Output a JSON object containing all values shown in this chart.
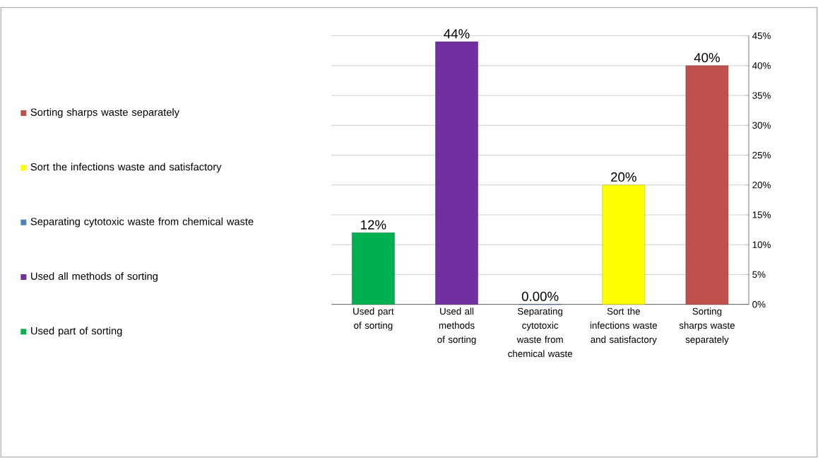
{
  "chart_data": {
    "type": "bar",
    "categories": [
      "Used part of sorting",
      "Used all methods of sorting",
      "Separating cytotoxic waste from chemical waste",
      "Sort the infections waste and satisfactory",
      "Sorting sharps waste separately"
    ],
    "stacked": true,
    "series": [
      {
        "name": "Used part of sorting",
        "color": "#00b050",
        "values": [
          12,
          null,
          null,
          null,
          null
        ],
        "value_labels": [
          "12%",
          null,
          null,
          null,
          null
        ]
      },
      {
        "name": "Used all methods of sorting",
        "color": "#7030a0",
        "values": [
          null,
          44,
          null,
          null,
          null
        ],
        "value_labels": [
          null,
          "44%",
          null,
          null,
          null
        ]
      },
      {
        "name": "Separating cytotoxic waste from chemical waste",
        "color": "#4f81bd",
        "values": [
          null,
          null,
          0,
          null,
          null
        ],
        "value_labels": [
          null,
          null,
          "0.00%",
          null,
          null
        ]
      },
      {
        "name": "Sort the infections waste and satisfactory",
        "color": "#ffff00",
        "values": [
          null,
          null,
          null,
          20,
          null
        ],
        "value_labels": [
          null,
          null,
          null,
          "20%",
          null
        ]
      },
      {
        "name": "Sorting sharps waste separately",
        "color": "#c0504d",
        "values": [
          null,
          null,
          null,
          null,
          40
        ],
        "value_labels": [
          null,
          null,
          null,
          null,
          "40%"
        ]
      }
    ],
    "ylim": [
      0,
      45
    ],
    "yticks": [
      {
        "value": 0,
        "label": "0%"
      },
      {
        "value": 5,
        "label": "5%"
      },
      {
        "value": 10,
        "label": "10%"
      },
      {
        "value": 15,
        "label": "15%"
      },
      {
        "value": 20,
        "label": "20%"
      },
      {
        "value": 25,
        "label": "25%"
      },
      {
        "value": 30,
        "label": "30%"
      },
      {
        "value": 35,
        "label": "35%"
      },
      {
        "value": 40,
        "label": "40%"
      },
      {
        "value": 45,
        "label": "45%"
      }
    ],
    "grid": "y",
    "legend": "left"
  }
}
